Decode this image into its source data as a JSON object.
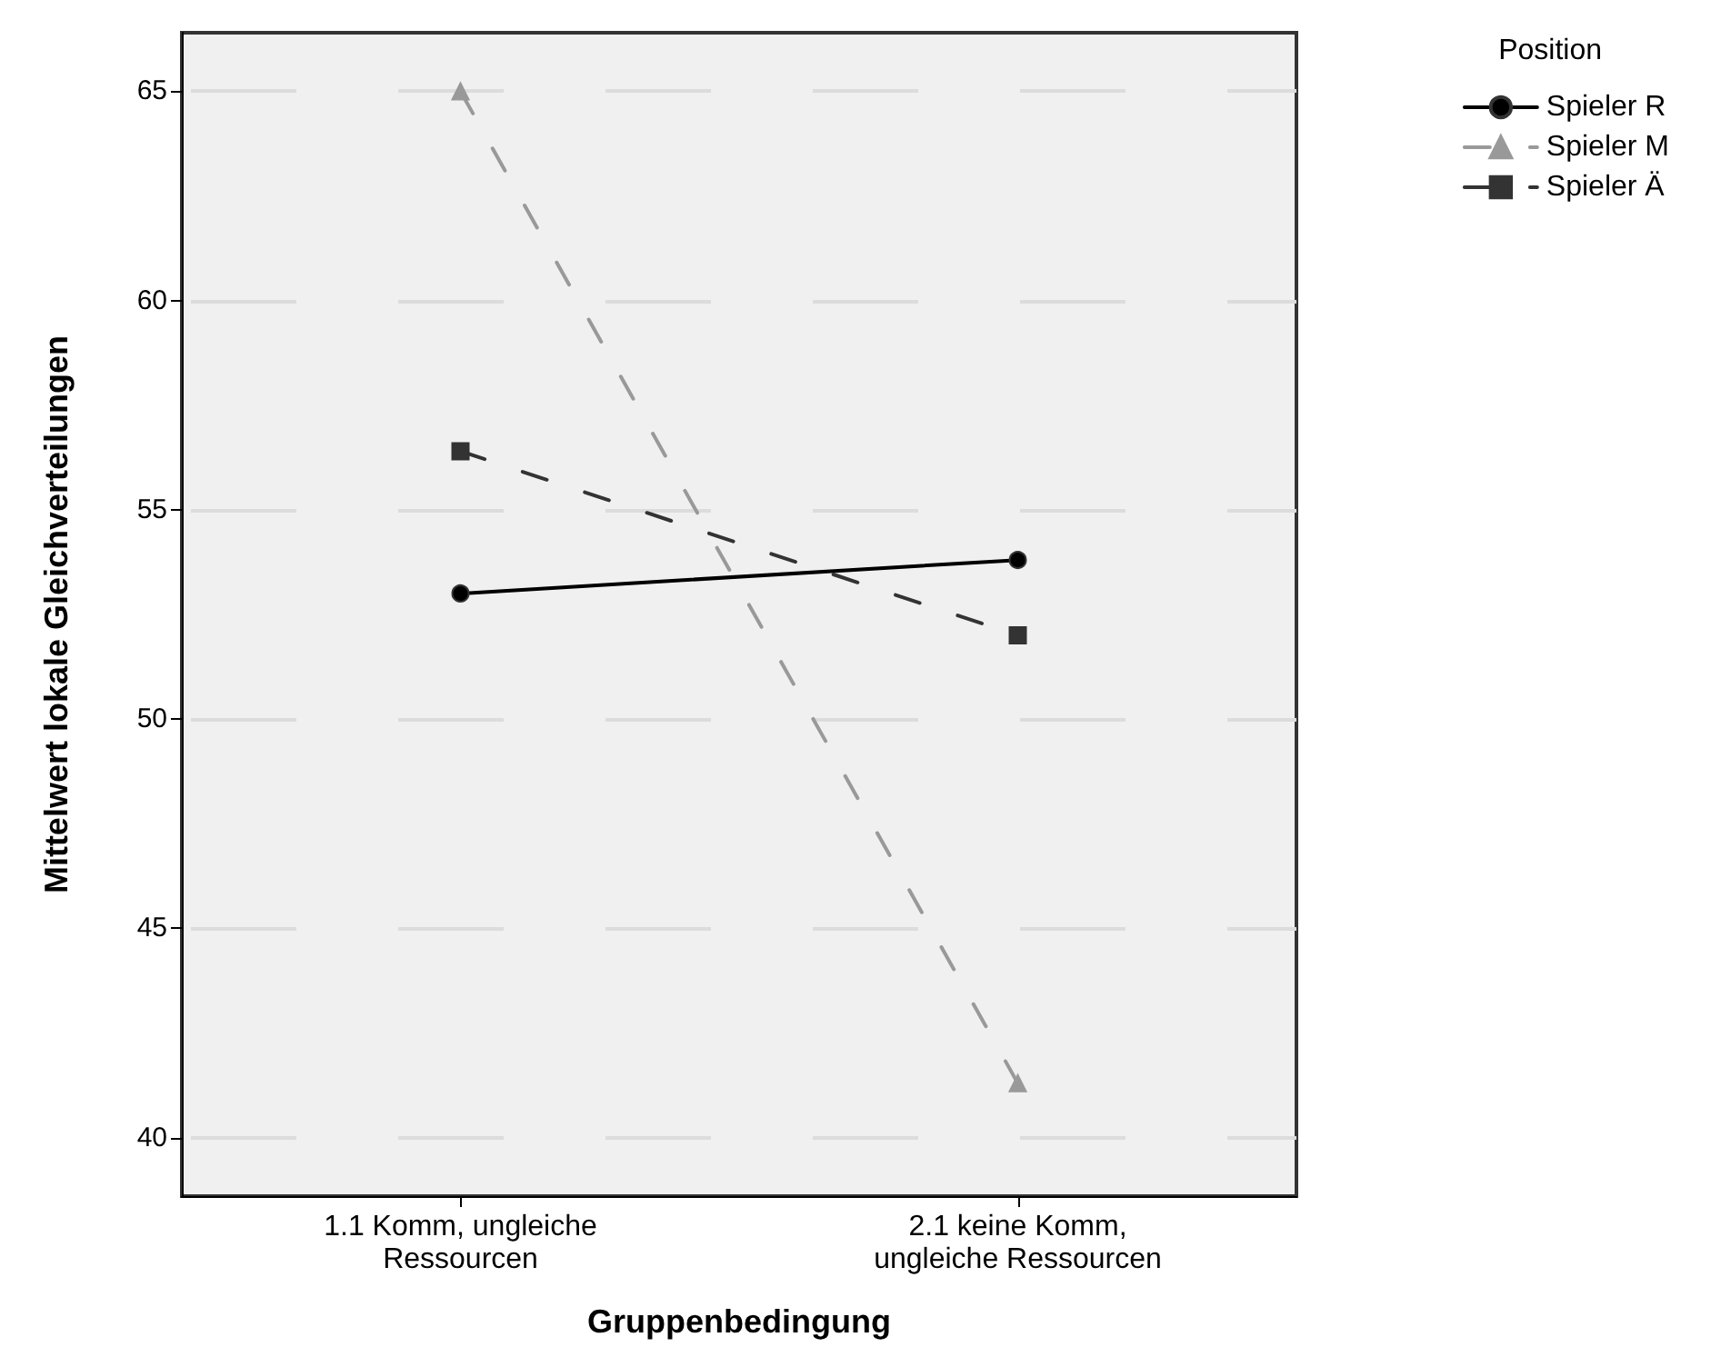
{
  "chart_data": {
    "type": "line",
    "xlabel": "Gruppenbedingung",
    "ylabel": "Mittelwert lokale Gleichverteilungen",
    "legend_title": "Position",
    "categories": [
      "1.1 Komm, ungleiche\nRessourcen",
      "2.1 keine Komm,\nungleiche Ressourcen"
    ],
    "series": [
      {
        "name": "Spieler R",
        "color": "#000000",
        "values": [
          53.0,
          53.8
        ],
        "marker": "circle",
        "line_style": "solid"
      },
      {
        "name": "Spieler M",
        "color": "#999999",
        "values": [
          65.0,
          41.3
        ],
        "marker": "triangle",
        "line_style": "dashed"
      },
      {
        "name": "Spieler Ä",
        "color": "#333333",
        "values": [
          56.4,
          52.0
        ],
        "marker": "square",
        "line_style": "dashed"
      }
    ],
    "ylim": [
      38.6,
      66.4
    ],
    "yticks": [
      40,
      45,
      50,
      55,
      60,
      65
    ],
    "grid": "y",
    "legend": "top right"
  }
}
